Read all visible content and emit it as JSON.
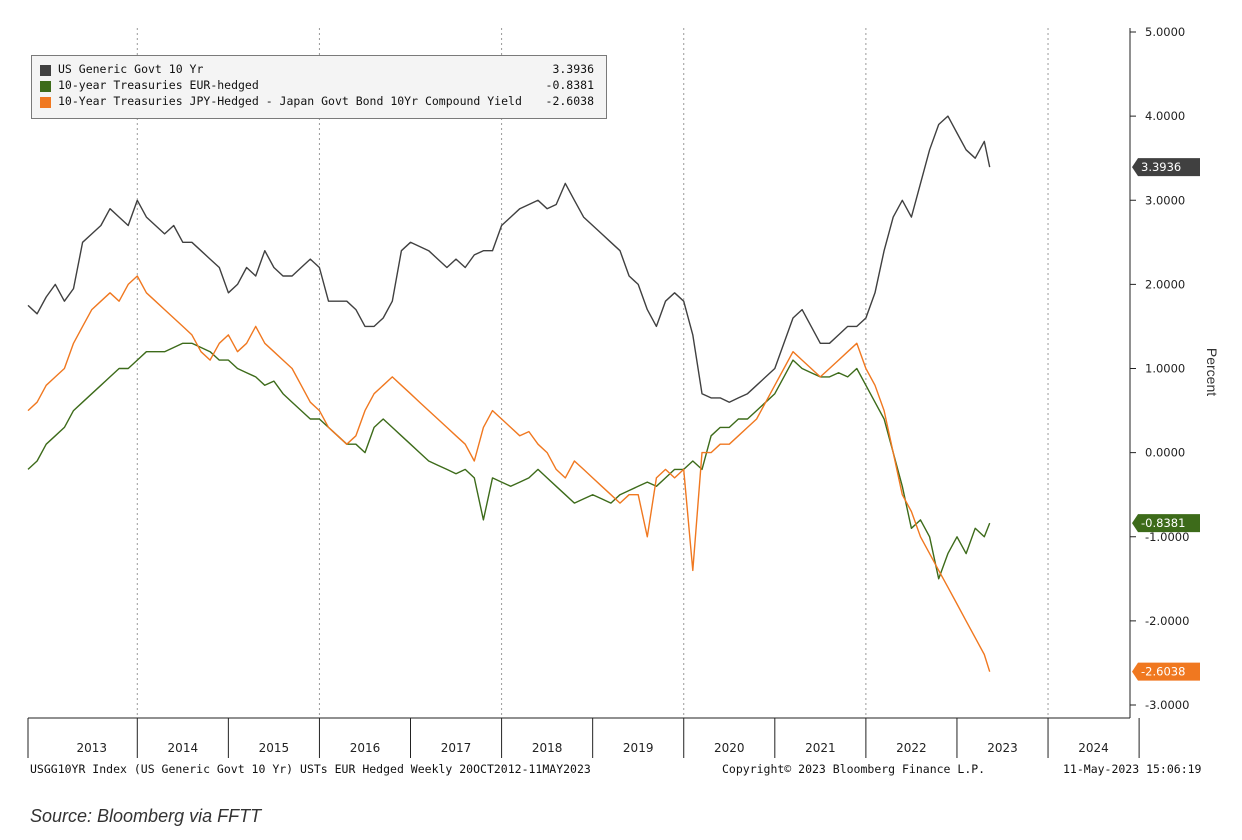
{
  "chart_data": {
    "type": "line",
    "y_axis_title": "Percent",
    "y_ticks": [
      "5.0000",
      "4.0000",
      "3.0000",
      "2.0000",
      "1.0000",
      "0.0000",
      "-1.0000",
      "-2.0000",
      "-3.0000"
    ],
    "ylim": [
      -3.2,
      5.0
    ],
    "xlim": [
      2012.8,
      2024.9
    ],
    "x_ticks": [
      "2013",
      "2014",
      "2015",
      "2016",
      "2017",
      "2018",
      "2019",
      "2020",
      "2021",
      "2022",
      "2023",
      "2024"
    ],
    "gridlines": "vertical dotted at year boundaries",
    "legend_position": "top-left",
    "series": [
      {
        "name": "US Generic Govt 10 Yr",
        "legend_value": "3.3936",
        "end_label": "3.3936",
        "color": "#404040",
        "x": [
          2012.8,
          2012.9,
          2013.0,
          2013.1,
          2013.2,
          2013.3,
          2013.4,
          2013.5,
          2013.6,
          2013.7,
          2013.8,
          2013.9,
          2014.0,
          2014.1,
          2014.2,
          2014.3,
          2014.4,
          2014.5,
          2014.6,
          2014.7,
          2014.8,
          2014.9,
          2015.0,
          2015.1,
          2015.2,
          2015.3,
          2015.4,
          2015.5,
          2015.6,
          2015.7,
          2015.8,
          2015.9,
          2016.0,
          2016.1,
          2016.2,
          2016.3,
          2016.4,
          2016.5,
          2016.6,
          2016.7,
          2016.8,
          2016.9,
          2017.0,
          2017.1,
          2017.2,
          2017.3,
          2017.4,
          2017.5,
          2017.6,
          2017.7,
          2017.8,
          2017.9,
          2018.0,
          2018.1,
          2018.2,
          2018.3,
          2018.4,
          2018.5,
          2018.6,
          2018.7,
          2018.8,
          2018.9,
          2019.0,
          2019.1,
          2019.2,
          2019.3,
          2019.4,
          2019.5,
          2019.6,
          2019.7,
          2019.8,
          2019.9,
          2020.0,
          2020.1,
          2020.2,
          2020.3,
          2020.4,
          2020.5,
          2020.6,
          2020.7,
          2020.8,
          2020.9,
          2021.0,
          2021.1,
          2021.2,
          2021.3,
          2021.4,
          2021.5,
          2021.6,
          2021.7,
          2021.8,
          2021.9,
          2022.0,
          2022.1,
          2022.2,
          2022.3,
          2022.4,
          2022.5,
          2022.6,
          2022.7,
          2022.8,
          2022.9,
          2023.0,
          2023.1,
          2023.2,
          2023.3,
          2023.36
        ],
        "values": [
          1.75,
          1.65,
          1.85,
          2.0,
          1.8,
          1.95,
          2.5,
          2.6,
          2.7,
          2.9,
          2.8,
          2.7,
          3.0,
          2.8,
          2.7,
          2.6,
          2.7,
          2.5,
          2.5,
          2.4,
          2.3,
          2.2,
          1.9,
          2.0,
          2.2,
          2.1,
          2.4,
          2.2,
          2.1,
          2.1,
          2.2,
          2.3,
          2.2,
          1.8,
          1.8,
          1.8,
          1.7,
          1.5,
          1.5,
          1.6,
          1.8,
          2.4,
          2.5,
          2.45,
          2.4,
          2.3,
          2.2,
          2.3,
          2.2,
          2.35,
          2.4,
          2.4,
          2.7,
          2.8,
          2.9,
          2.95,
          3.0,
          2.9,
          2.95,
          3.2,
          3.0,
          2.8,
          2.7,
          2.6,
          2.5,
          2.4,
          2.1,
          2.0,
          1.7,
          1.5,
          1.8,
          1.9,
          1.8,
          1.4,
          0.7,
          0.65,
          0.65,
          0.6,
          0.65,
          0.7,
          0.8,
          0.9,
          1.0,
          1.3,
          1.6,
          1.7,
          1.5,
          1.3,
          1.3,
          1.4,
          1.5,
          1.5,
          1.6,
          1.9,
          2.4,
          2.8,
          3.0,
          2.8,
          3.2,
          3.6,
          3.9,
          4.0,
          3.8,
          3.6,
          3.5,
          3.7,
          3.3936
        ]
      },
      {
        "name": "10-year Treasuries EUR-hedged",
        "legend_value": "-0.8381",
        "end_label": "-0.8381",
        "color": "#3d6b1a",
        "x": [
          2012.8,
          2012.9,
          2013.0,
          2013.1,
          2013.2,
          2013.3,
          2013.4,
          2013.5,
          2013.6,
          2013.7,
          2013.8,
          2013.9,
          2014.0,
          2014.1,
          2014.2,
          2014.3,
          2014.4,
          2014.5,
          2014.6,
          2014.7,
          2014.8,
          2014.9,
          2015.0,
          2015.1,
          2015.2,
          2015.3,
          2015.4,
          2015.5,
          2015.6,
          2015.7,
          2015.8,
          2015.9,
          2016.0,
          2016.1,
          2016.2,
          2016.3,
          2016.4,
          2016.5,
          2016.6,
          2016.7,
          2016.8,
          2016.9,
          2017.0,
          2017.1,
          2017.2,
          2017.3,
          2017.4,
          2017.5,
          2017.6,
          2017.7,
          2017.8,
          2017.9,
          2018.0,
          2018.1,
          2018.2,
          2018.3,
          2018.4,
          2018.5,
          2018.6,
          2018.7,
          2018.8,
          2018.9,
          2019.0,
          2019.1,
          2019.2,
          2019.3,
          2019.4,
          2019.5,
          2019.6,
          2019.7,
          2019.8,
          2019.9,
          2020.0,
          2020.1,
          2020.2,
          2020.3,
          2020.4,
          2020.5,
          2020.6,
          2020.7,
          2020.8,
          2020.9,
          2021.0,
          2021.1,
          2021.2,
          2021.3,
          2021.4,
          2021.5,
          2021.6,
          2021.7,
          2021.8,
          2021.9,
          2022.0,
          2022.1,
          2022.2,
          2022.3,
          2022.4,
          2022.5,
          2022.6,
          2022.7,
          2022.8,
          2022.9,
          2023.0,
          2023.1,
          2023.2,
          2023.3,
          2023.36
        ],
        "values": [
          -0.2,
          -0.1,
          0.1,
          0.2,
          0.3,
          0.5,
          0.6,
          0.7,
          0.8,
          0.9,
          1.0,
          1.0,
          1.1,
          1.2,
          1.2,
          1.2,
          1.25,
          1.3,
          1.3,
          1.25,
          1.2,
          1.1,
          1.1,
          1.0,
          0.95,
          0.9,
          0.8,
          0.85,
          0.7,
          0.6,
          0.5,
          0.4,
          0.4,
          0.3,
          0.2,
          0.1,
          0.1,
          0.0,
          0.3,
          0.4,
          0.3,
          0.2,
          0.1,
          0.0,
          -0.1,
          -0.15,
          -0.2,
          -0.25,
          -0.2,
          -0.3,
          -0.8,
          -0.3,
          -0.35,
          -0.4,
          -0.35,
          -0.3,
          -0.2,
          -0.3,
          -0.4,
          -0.5,
          -0.6,
          -0.55,
          -0.5,
          -0.55,
          -0.6,
          -0.5,
          -0.45,
          -0.4,
          -0.35,
          -0.4,
          -0.3,
          -0.2,
          -0.2,
          -0.1,
          -0.2,
          0.2,
          0.3,
          0.3,
          0.4,
          0.4,
          0.5,
          0.6,
          0.7,
          0.9,
          1.1,
          1.0,
          0.95,
          0.9,
          0.9,
          0.95,
          0.9,
          1.0,
          0.8,
          0.6,
          0.4,
          0.0,
          -0.4,
          -0.9,
          -0.8,
          -1.0,
          -1.5,
          -1.2,
          -1.0,
          -1.2,
          -0.9,
          -1.0,
          -0.8381
        ]
      },
      {
        "name": "10-Year Treasuries JPY-Hedged - Japan Govt Bond 10Yr Compound Yield",
        "legend_value": "-2.6038",
        "end_label": "-2.6038",
        "color": "#f07820",
        "x": [
          2012.8,
          2012.9,
          2013.0,
          2013.1,
          2013.2,
          2013.3,
          2013.4,
          2013.5,
          2013.6,
          2013.7,
          2013.8,
          2013.9,
          2014.0,
          2014.1,
          2014.2,
          2014.3,
          2014.4,
          2014.5,
          2014.6,
          2014.7,
          2014.8,
          2014.9,
          2015.0,
          2015.1,
          2015.2,
          2015.3,
          2015.4,
          2015.5,
          2015.6,
          2015.7,
          2015.8,
          2015.9,
          2016.0,
          2016.1,
          2016.2,
          2016.3,
          2016.4,
          2016.5,
          2016.6,
          2016.7,
          2016.8,
          2016.9,
          2017.0,
          2017.1,
          2017.2,
          2017.3,
          2017.4,
          2017.5,
          2017.6,
          2017.7,
          2017.8,
          2017.9,
          2018.0,
          2018.1,
          2018.2,
          2018.3,
          2018.4,
          2018.5,
          2018.6,
          2018.7,
          2018.8,
          2018.9,
          2019.0,
          2019.1,
          2019.2,
          2019.3,
          2019.4,
          2019.5,
          2019.6,
          2019.7,
          2019.8,
          2019.9,
          2020.0,
          2020.1,
          2020.2,
          2020.3,
          2020.4,
          2020.5,
          2020.6,
          2020.7,
          2020.8,
          2020.9,
          2021.0,
          2021.1,
          2021.2,
          2021.3,
          2021.4,
          2021.5,
          2021.6,
          2021.7,
          2021.8,
          2021.9,
          2022.0,
          2022.1,
          2022.2,
          2022.3,
          2022.4,
          2022.5,
          2022.6,
          2022.7,
          2022.8,
          2022.9,
          2023.0,
          2023.1,
          2023.2,
          2023.3,
          2023.36
        ],
        "values": [
          0.5,
          0.6,
          0.8,
          0.9,
          1.0,
          1.3,
          1.5,
          1.7,
          1.8,
          1.9,
          1.8,
          2.0,
          2.1,
          1.9,
          1.8,
          1.7,
          1.6,
          1.5,
          1.4,
          1.2,
          1.1,
          1.3,
          1.4,
          1.2,
          1.3,
          1.5,
          1.3,
          1.2,
          1.1,
          1.0,
          0.8,
          0.6,
          0.5,
          0.3,
          0.2,
          0.1,
          0.2,
          0.5,
          0.7,
          0.8,
          0.9,
          0.8,
          0.7,
          0.6,
          0.5,
          0.4,
          0.3,
          0.2,
          0.1,
          -0.1,
          0.3,
          0.5,
          0.4,
          0.3,
          0.2,
          0.25,
          0.1,
          0.0,
          -0.2,
          -0.3,
          -0.1,
          -0.2,
          -0.3,
          -0.4,
          -0.5,
          -0.6,
          -0.5,
          -0.5,
          -1.0,
          -0.3,
          -0.2,
          -0.3,
          -0.2,
          -1.4,
          0.0,
          0.0,
          0.1,
          0.1,
          0.2,
          0.3,
          0.4,
          0.6,
          0.8,
          1.0,
          1.2,
          1.1,
          1.0,
          0.9,
          1.0,
          1.1,
          1.2,
          1.3,
          1.0,
          0.8,
          0.5,
          0.0,
          -0.5,
          -0.7,
          -1.0,
          -1.2,
          -1.4,
          -1.6,
          -1.8,
          -2.0,
          -2.2,
          -2.4,
          -2.6038
        ]
      }
    ]
  },
  "footer": {
    "left": "USGG10YR Index (US Generic Govt 10 Yr) USTs EUR Hedged  Weekly 20OCT2012-11MAY2023",
    "center": "Copyright© 2023 Bloomberg Finance L.P.",
    "right": "11-May-2023 15:06:19"
  },
  "source_note": "Source: Bloomberg via FFTT"
}
